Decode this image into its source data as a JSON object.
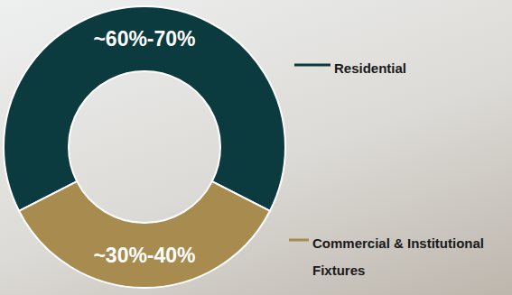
{
  "chart_data": {
    "type": "pie",
    "categories": [
      "Residential",
      "Commercial & Institutional Fixtures"
    ],
    "values": [
      65,
      35
    ],
    "value_labels": [
      "~60%-70%",
      "~30%-40%"
    ],
    "colors": [
      "#0b3b3e",
      "#a88b4f"
    ],
    "data_labels": true
  }
}
